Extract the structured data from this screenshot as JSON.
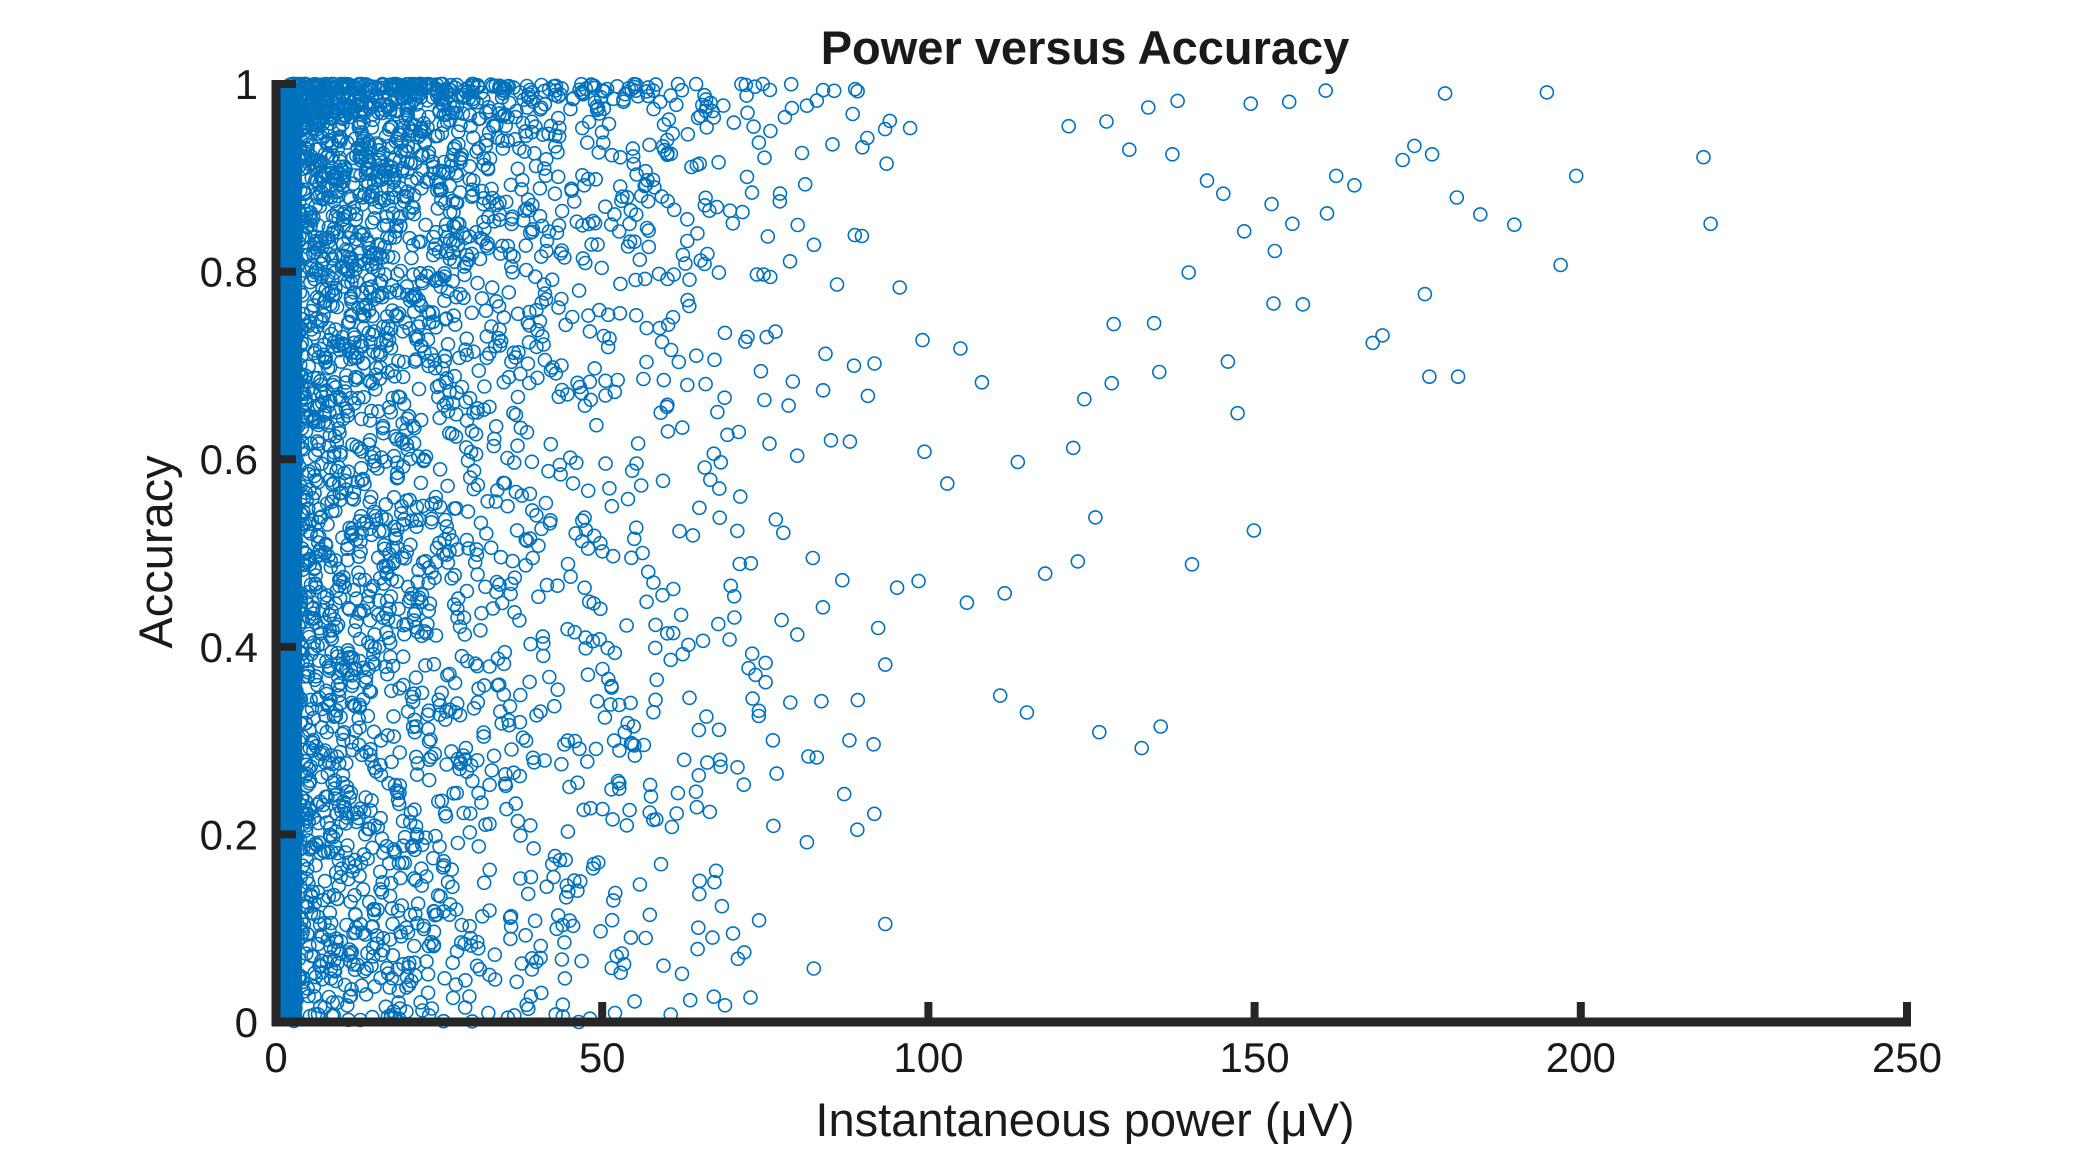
{
  "chart_data": {
    "type": "scatter",
    "title": "Power versus Accuracy",
    "xlabel": "Instantaneous power (μV)",
    "ylabel": "Accuracy",
    "xlim": [
      0,
      250
    ],
    "ylim": [
      0,
      1
    ],
    "xticks": [
      0,
      50,
      100,
      150,
      200,
      250
    ],
    "xtick_labels": [
      "0",
      "50",
      "100",
      "150",
      "200",
      "250"
    ],
    "yticks": [
      0,
      0.2,
      0.4,
      0.6,
      0.8,
      1
    ],
    "ytick_labels": [
      "0",
      "0.2",
      "0.4",
      "0.6",
      "0.8",
      "1"
    ],
    "grid": false,
    "marker": "open-circle",
    "color": "#0072BD",
    "series": [
      {
        "points": [
          [
            194.8,
            0.991
          ],
          [
            179.2,
            0.99
          ],
          [
            160.9,
            0.993
          ],
          [
            218.8,
            0.922
          ],
          [
            219.9,
            0.851
          ],
          [
            199.3,
            0.902
          ],
          [
            196.9,
            0.807
          ],
          [
            184.6,
            0.861
          ],
          [
            181.0,
            0.879
          ],
          [
            189.8,
            0.85
          ],
          [
            176.1,
            0.776
          ],
          [
            176.8,
            0.688
          ],
          [
            181.2,
            0.688
          ],
          [
            174.5,
            0.934
          ],
          [
            172.7,
            0.919
          ],
          [
            177.2,
            0.925
          ],
          [
            169.6,
            0.732
          ],
          [
            168.1,
            0.724
          ],
          [
            165.3,
            0.892
          ],
          [
            162.5,
            0.902
          ],
          [
            161.1,
            0.862
          ],
          [
            149.4,
            0.979
          ],
          [
            155.3,
            0.981
          ],
          [
            147.4,
            0.649
          ],
          [
            145.9,
            0.704
          ],
          [
            149.9,
            0.524
          ],
          [
            140.4,
            0.488
          ],
          [
            135.6,
            0.315
          ],
          [
            132.7,
            0.292
          ],
          [
            126.2,
            0.309
          ],
          [
            115.1,
            0.33
          ],
          [
            111.0,
            0.348
          ],
          [
            125.6,
            0.538
          ],
          [
            122.9,
            0.491
          ],
          [
            117.9,
            0.478
          ],
          [
            111.7,
            0.457
          ],
          [
            105.9,
            0.447
          ],
          [
            102.9,
            0.574
          ],
          [
            99.4,
            0.608
          ],
          [
            89.1,
            0.205
          ],
          [
            91.7,
            0.222
          ],
          [
            87.1,
            0.243
          ],
          [
            82.9,
            0.282
          ],
          [
            81.6,
            0.283
          ],
          [
            83.6,
            0.342
          ],
          [
            93.4,
            0.381
          ],
          [
            92.3,
            0.42
          ],
          [
            86.8,
            0.471
          ],
          [
            95.2,
            0.463
          ],
          [
            98.5,
            0.47
          ],
          [
            79.9,
            0.413
          ],
          [
            72.8,
            0.489
          ],
          [
            69.7,
            0.465
          ],
          [
            67.2,
            0.149
          ],
          [
            66.9,
            0.09
          ],
          [
            67.1,
            0.027
          ],
          [
            59.4,
            0.06
          ],
          [
            60.5,
            0.008
          ],
          [
            54.4,
            0.09
          ],
          [
            52.2,
            0.07
          ],
          [
            53.0,
            0.073
          ],
          [
            46.4,
            0.0
          ],
          [
            49.4,
            0.17
          ],
          [
            46.2,
            0.14
          ],
          [
            44.8,
            0.139
          ],
          [
            64.8,
            0.263
          ],
          [
            66.5,
            0.224
          ],
          [
            71.7,
            0.253
          ],
          [
            64.5,
            0.229
          ],
          [
            58.3,
            0.216
          ],
          [
            52.6,
            0.338
          ],
          [
            55.0,
            0.284
          ],
          [
            60.5,
            0.386
          ],
          [
            62.1,
            0.434
          ],
          [
            56.8,
            0.448
          ],
          [
            138.2,
            0.982
          ],
          [
            133.7,
            0.975
          ],
          [
            127.3,
            0.96
          ],
          [
            121.5,
            0.955
          ],
          [
            130.8,
            0.93
          ],
          [
            137.4,
            0.925
          ],
          [
            142.7,
            0.897
          ],
          [
            145.2,
            0.883
          ],
          [
            152.6,
            0.872
          ],
          [
            155.8,
            0.851
          ],
          [
            148.4,
            0.843
          ],
          [
            153.1,
            0.822
          ],
          [
            157.4,
            0.765
          ],
          [
            152.9,
            0.766
          ],
          [
            139.9,
            0.799
          ],
          [
            134.6,
            0.745
          ],
          [
            128.4,
            0.744
          ],
          [
            135.4,
            0.693
          ],
          [
            128.1,
            0.681
          ],
          [
            123.9,
            0.664
          ],
          [
            122.2,
            0.612
          ],
          [
            113.7,
            0.597
          ],
          [
            108.2,
            0.682
          ],
          [
            104.9,
            0.718
          ],
          [
            99.1,
            0.727
          ],
          [
            95.6,
            0.783
          ],
          [
            89.8,
            0.838
          ],
          [
            93.6,
            0.915
          ],
          [
            88.4,
            0.968
          ],
          [
            97.2,
            0.953
          ]
        ]
      }
    ]
  }
}
